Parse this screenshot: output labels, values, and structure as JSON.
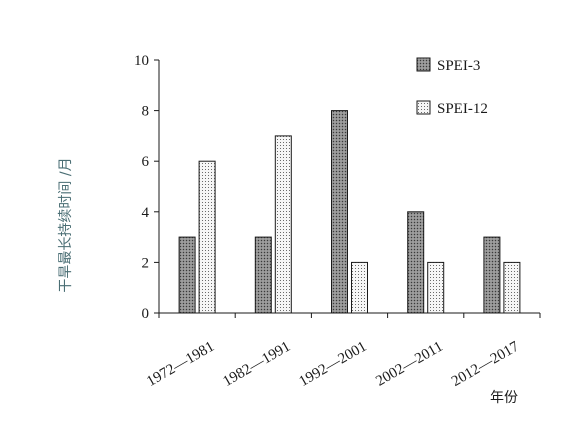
{
  "chart_data": {
    "type": "bar",
    "categories": [
      "1972—1981",
      "1982—1991",
      "1992—2001",
      "2002—2011",
      "2012—2017"
    ],
    "series": [
      {
        "name": "SPEI-3",
        "values": [
          3,
          3,
          8,
          4,
          3
        ],
        "pattern": "dark-dotted"
      },
      {
        "name": "SPEI-12",
        "values": [
          6,
          7,
          2,
          2,
          2
        ],
        "pattern": "light-dotted"
      }
    ],
    "xlabel": "年份",
    "ylabel": "干旱最长持续时间 /月",
    "ylim": [
      0,
      10
    ],
    "yticks": [
      0,
      2,
      4,
      6,
      8,
      10
    ],
    "legend_position": "top-right",
    "grid": false,
    "colors": {
      "axis": "#1a1a1a",
      "bar_stroke": "#1a1a1a",
      "spei3_fill": "#8a8a8a",
      "spei12_fill": "#f4f4f4",
      "ylabel_color": "#4a6e74"
    }
  }
}
